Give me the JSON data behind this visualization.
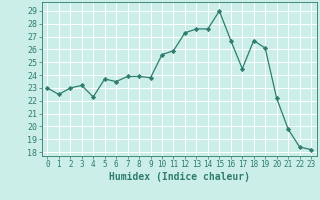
{
  "x": [
    0,
    1,
    2,
    3,
    4,
    5,
    6,
    7,
    8,
    9,
    10,
    11,
    12,
    13,
    14,
    15,
    16,
    17,
    18,
    19,
    20,
    21,
    22,
    23
  ],
  "y": [
    23,
    22.5,
    23,
    23.2,
    22.3,
    23.7,
    23.5,
    23.9,
    23.9,
    23.8,
    25.6,
    25.9,
    27.3,
    27.6,
    27.6,
    29.0,
    26.7,
    24.5,
    26.7,
    26.1,
    22.2,
    19.8,
    18.4,
    18.2
  ],
  "xlim": [
    -0.5,
    23.5
  ],
  "ylim": [
    17.7,
    29.7
  ],
  "yticks": [
    18,
    19,
    20,
    21,
    22,
    23,
    24,
    25,
    26,
    27,
    28,
    29
  ],
  "xticks": [
    0,
    1,
    2,
    3,
    4,
    5,
    6,
    7,
    8,
    9,
    10,
    11,
    12,
    13,
    14,
    15,
    16,
    17,
    18,
    19,
    20,
    21,
    22,
    23
  ],
  "xlabel": "Humidex (Indice chaleur)",
  "line_color": "#2e7d6e",
  "marker": "D",
  "marker_size": 2.2,
  "bg_color": "#cceee8",
  "grid_color": "#ffffff",
  "tick_color": "#2e7d6e",
  "label_color": "#2e7d6e",
  "tick_fontsize": 5.5,
  "label_fontsize": 7.0
}
